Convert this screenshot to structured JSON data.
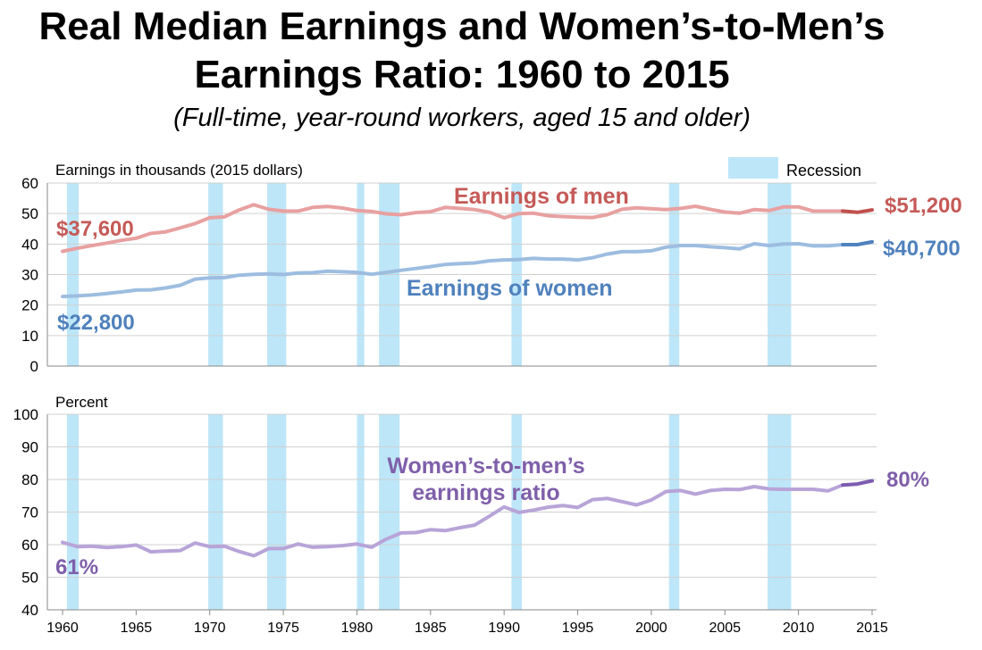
{
  "title_line1": "Real Median Earnings and Women’s-to-Men’s",
  "title_line2": "Earnings Ratio: 1960 to 2015",
  "subtitle": "(Full-time, year-round workers, aged 15 and older)",
  "colors": {
    "men": "#E8A0A0",
    "men_dark": "#C0504D",
    "men_label": "#C55A57",
    "women": "#9DBDE0",
    "women_dark": "#4F81BD",
    "women_label": "#4F81BD",
    "ratio": "#B8A4D8",
    "ratio_dark": "#7C5CB0",
    "ratio_label": "#7F5FAA",
    "recession": "#BDE6F8"
  },
  "chart_data": [
    {
      "type": "line",
      "title": "Real Median Earnings",
      "ylabel": "Earnings in thousands (2015 dollars)",
      "xlim": [
        1959.5,
        2015.5
      ],
      "ylim": [
        0,
        60
      ],
      "yticks": [
        0,
        10,
        20,
        30,
        40,
        50,
        60
      ],
      "legend": {
        "label": "Recession",
        "placement": "top-right"
      },
      "recessions": [
        [
          1960.3,
          1961.1
        ],
        [
          1969.9,
          1970.9
        ],
        [
          1973.9,
          1975.2
        ],
        [
          1980.0,
          1980.5
        ],
        [
          1981.5,
          1982.9
        ],
        [
          1990.5,
          1991.2
        ],
        [
          2001.2,
          2001.9
        ],
        [
          2007.9,
          2009.5
        ]
      ],
      "x": [
        1960,
        1961,
        1962,
        1963,
        1964,
        1965,
        1966,
        1967,
        1968,
        1969,
        1970,
        1971,
        1972,
        1973,
        1974,
        1975,
        1976,
        1977,
        1978,
        1979,
        1980,
        1981,
        1982,
        1983,
        1984,
        1985,
        1986,
        1987,
        1988,
        1989,
        1990,
        1991,
        1992,
        1993,
        1994,
        1995,
        1996,
        1997,
        1998,
        1999,
        2000,
        2001,
        2002,
        2003,
        2004,
        2005,
        2006,
        2007,
        2008,
        2009,
        2010,
        2011,
        2012,
        2013,
        2014,
        2015
      ],
      "series": [
        {
          "name": "Earnings of men",
          "label": "Earnings of men",
          "start_label": "$37,600",
          "end_label": "$51,200",
          "values": [
            37.6,
            38.6,
            39.5,
            40.3,
            41.2,
            41.9,
            43.5,
            44.0,
            45.3,
            46.7,
            48.6,
            48.9,
            51.2,
            52.9,
            51.4,
            50.8,
            50.8,
            52.0,
            52.3,
            51.8,
            51.0,
            50.7,
            49.9,
            49.6,
            50.3,
            50.6,
            52.0,
            51.7,
            51.3,
            50.4,
            48.6,
            50.0,
            50.1,
            49.3,
            49.0,
            48.8,
            48.7,
            49.6,
            51.4,
            51.9,
            51.6,
            51.3,
            51.7,
            52.4,
            51.4,
            50.5,
            50.1,
            51.3,
            51.0,
            52.2,
            52.2,
            50.8,
            50.8,
            50.8,
            50.4,
            51.2
          ]
        },
        {
          "name": "Earnings of women",
          "label": "Earnings of women",
          "start_label": "$22,800",
          "end_label": "$40,700",
          "values": [
            22.8,
            23.0,
            23.3,
            23.8,
            24.3,
            24.9,
            25.0,
            25.6,
            26.5,
            28.5,
            28.9,
            29.0,
            29.8,
            30.1,
            30.2,
            30.0,
            30.5,
            30.6,
            31.1,
            30.9,
            30.7,
            30.1,
            30.7,
            31.4,
            32.0,
            32.6,
            33.3,
            33.6,
            33.8,
            34.5,
            34.8,
            34.9,
            35.3,
            35.1,
            35.1,
            34.8,
            35.5,
            36.7,
            37.5,
            37.5,
            37.8,
            39.0,
            39.5,
            39.5,
            39.1,
            38.8,
            38.4,
            40.1,
            39.5,
            40.0,
            40.1,
            39.4,
            39.4,
            39.8,
            39.8,
            40.7
          ]
        }
      ]
    },
    {
      "type": "line",
      "title": "Women’s-to-men’s earnings ratio",
      "ylabel": "Percent",
      "xlim": [
        1959.5,
        2015.5
      ],
      "ylim": [
        40,
        100
      ],
      "yticks": [
        40,
        50,
        60,
        70,
        80,
        90,
        100
      ],
      "xticks": [
        1960,
        1965,
        1970,
        1975,
        1980,
        1985,
        1990,
        1995,
        2000,
        2005,
        2010,
        2015
      ],
      "recessions": [
        [
          1960.3,
          1961.1
        ],
        [
          1969.9,
          1970.9
        ],
        [
          1973.9,
          1975.2
        ],
        [
          1980.0,
          1980.5
        ],
        [
          1981.5,
          1982.9
        ],
        [
          1990.5,
          1991.2
        ],
        [
          2001.2,
          2001.9
        ],
        [
          2007.9,
          2009.5
        ]
      ],
      "x": [
        1960,
        1961,
        1962,
        1963,
        1964,
        1965,
        1966,
        1967,
        1968,
        1969,
        1970,
        1971,
        1972,
        1973,
        1974,
        1975,
        1976,
        1977,
        1978,
        1979,
        1980,
        1981,
        1982,
        1983,
        1984,
        1985,
        1986,
        1987,
        1988,
        1989,
        1990,
        1991,
        1992,
        1993,
        1994,
        1995,
        1996,
        1997,
        1998,
        1999,
        2000,
        2001,
        2002,
        2003,
        2004,
        2005,
        2006,
        2007,
        2008,
        2009,
        2010,
        2011,
        2012,
        2013,
        2014,
        2015
      ],
      "series": [
        {
          "name": "Women’s-to-men’s earnings ratio",
          "label_line1": "Women’s-to-men’s",
          "label_line2": "earnings ratio",
          "start_label": "61%",
          "end_label": "80%",
          "values": [
            60.7,
            59.4,
            59.5,
            59.1,
            59.4,
            59.9,
            57.8,
            58.0,
            58.2,
            60.5,
            59.4,
            59.5,
            57.9,
            56.6,
            58.8,
            58.8,
            60.2,
            59.2,
            59.4,
            59.7,
            60.2,
            59.2,
            61.7,
            63.6,
            63.7,
            64.6,
            64.3,
            65.2,
            66.0,
            68.7,
            71.6,
            69.9,
            70.6,
            71.5,
            72.0,
            71.4,
            73.8,
            74.2,
            73.2,
            72.2,
            73.7,
            76.3,
            76.6,
            75.5,
            76.6,
            77.0,
            76.9,
            77.8,
            77.1,
            77.0,
            77.0,
            77.0,
            76.5,
            78.3,
            78.6,
            79.6
          ]
        }
      ]
    }
  ]
}
